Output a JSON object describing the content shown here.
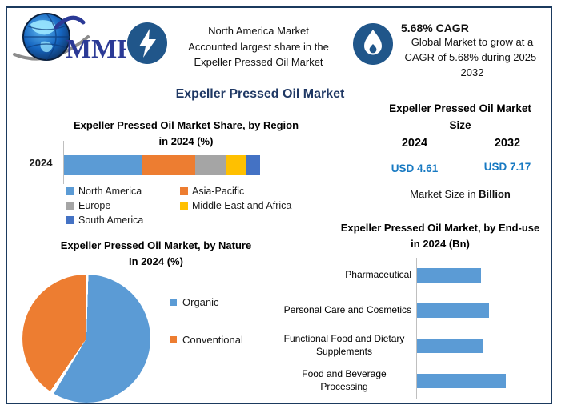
{
  "header": {
    "logo_text": "MMR",
    "banner1": {
      "icon": "lightning-icon",
      "text": "North America Market\nAccounted largest share in the\nExpeller Pressed Oil Market"
    },
    "banner2": {
      "icon": "flame-icon",
      "title": "5.68% CAGR",
      "text": "Global Market to grow at a\nCAGR of 5.68% during 2025-\n2032"
    }
  },
  "main_title": "Expeller Pressed Oil Market",
  "market_size": {
    "title": "Expeller Pressed Oil Market\nSize",
    "columns": [
      {
        "year": "2024",
        "value": "USD 4.61"
      },
      {
        "year": "2032",
        "value": "USD 7.17"
      }
    ],
    "caption_prefix": "Market Size in ",
    "caption_bold": "Billion"
  },
  "colors": {
    "border_navy": "#1B3A5E",
    "title_navy": "#1F3864",
    "icon_circle_blue": "#20568A",
    "usd_blue": "#1779C2",
    "logo_blue": "#2B3A96"
  },
  "chart_data": [
    {
      "type": "bar",
      "variant": "stacked-horizontal",
      "title": "Expeller Pressed Oil Market Share, by Region\nin 2024 (%)",
      "categories": [
        "2024"
      ],
      "series": [
        {
          "name": "North America",
          "value": 40,
          "color": "#5B9BD5"
        },
        {
          "name": "Asia-Pacific",
          "value": 27,
          "color": "#ED7D31"
        },
        {
          "name": "Europe",
          "value": 16,
          "color": "#A5A5A5"
        },
        {
          "name": "Middle East and Africa",
          "value": 10,
          "color": "#FFC000"
        },
        {
          "name": "South America",
          "value": 7,
          "color": "#4472C4"
        }
      ],
      "xlim": [
        0,
        100
      ],
      "legend_position": "bottom",
      "grid": false
    },
    {
      "type": "pie",
      "title": "Expeller Pressed Oil Market, by Nature\nIn 2024 (%)",
      "labels": [
        "Organic",
        "Conventional"
      ],
      "values": [
        59,
        41
      ],
      "colors": [
        "#5B9BD5",
        "#ED7D31"
      ],
      "start_angle_deg": 0,
      "direction": "clockwise",
      "legend_position": "right"
    },
    {
      "type": "bar",
      "variant": "horizontal",
      "title": "Expeller Pressed Oil Market, by End-use\nin 2024 (Bn)",
      "categories": [
        "Pharmaceutical",
        "Personal Care and Cosmetics",
        "Functional Food and Dietary Supplements",
        "Food and Beverage Processing"
      ],
      "values_pct_of_max": [
        72,
        81,
        74,
        100
      ],
      "note": "value axis unlabeled; bar lengths shown relative to longest bar",
      "color": "#5B9BD5",
      "grid": false
    }
  ]
}
